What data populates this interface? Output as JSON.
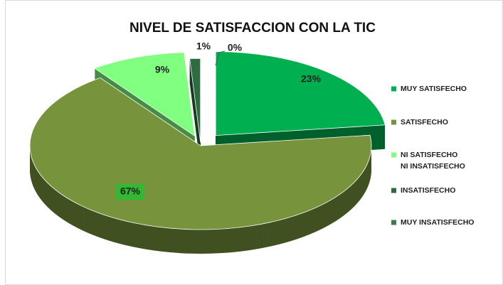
{
  "chart_data": {
    "type": "pie",
    "title": "NIVEL DE SATISFACCION CON LA TIC",
    "categories": [
      "MUY SATISFECHO",
      "SATISFECHO",
      "NI SATISFECHO  NI INSATISFECHO",
      "INSATISFECHO",
      "MUY INSATISFECHO"
    ],
    "values": [
      23,
      67,
      9,
      1,
      0
    ],
    "value_labels": [
      "23%",
      "67%",
      "9%",
      "1%",
      "0%"
    ],
    "colors": [
      "#00b050",
      "#77933c",
      "#80ff80",
      "#2e6b3e",
      "#3d7a50"
    ],
    "legend": "right"
  }
}
